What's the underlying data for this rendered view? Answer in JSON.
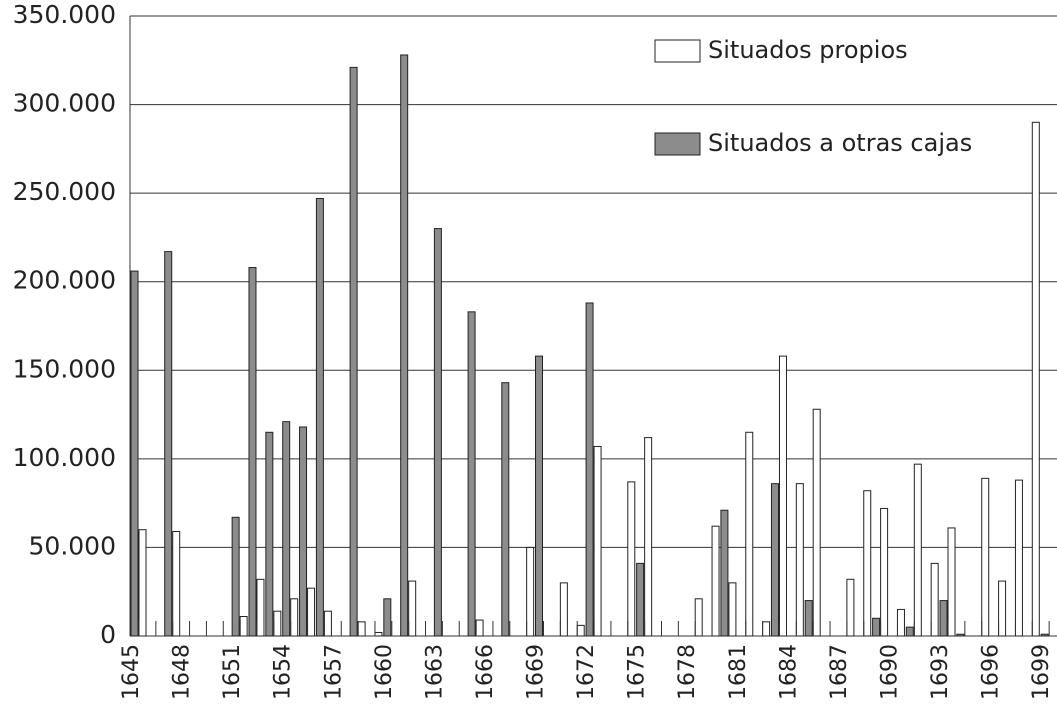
{
  "chart_data": {
    "type": "bar",
    "categories": [
      "1645",
      null,
      null,
      "1648",
      null,
      null,
      "1651",
      null,
      null,
      "1654",
      null,
      null,
      "1657",
      null,
      null,
      "1660",
      null,
      null,
      "1663",
      null,
      null,
      "1666",
      null,
      null,
      "1669",
      null,
      null,
      "1672",
      null,
      null,
      "1675",
      null,
      null,
      "1678",
      null,
      null,
      "1681",
      null,
      null,
      "1684",
      null,
      null,
      "1687",
      null,
      null,
      "1690",
      null,
      null,
      "1693",
      null,
      null,
      "1696",
      null,
      null,
      "1699"
    ],
    "series": [
      {
        "name": "Situados propios",
        "color": "#ffffff",
        "values": [
          60000,
          0,
          59000,
          0,
          0,
          0,
          11000,
          32000,
          14000,
          21000,
          27000,
          14000,
          0,
          8000,
          2000,
          0,
          31000,
          0,
          0,
          0,
          9000,
          0,
          0,
          50000,
          0,
          30000,
          6000,
          107000,
          0,
          87000,
          112000,
          0,
          0,
          21000,
          62000,
          30000,
          115000,
          8000,
          158000,
          86000,
          128000,
          0,
          32000,
          82000,
          72000,
          15000,
          97000,
          41000,
          61000,
          0,
          89000,
          31000,
          88000,
          290000,
          0
        ]
      },
      {
        "name": "Situados a otras cajas",
        "color": "#8c8c8c",
        "values": [
          206000,
          0,
          217000,
          0,
          0,
          0,
          67000,
          208000,
          115000,
          121000,
          118000,
          247000,
          0,
          321000,
          0,
          21000,
          328000,
          0,
          230000,
          0,
          183000,
          0,
          143000,
          0,
          158000,
          0,
          0,
          188000,
          0,
          0,
          41000,
          0,
          0,
          0,
          0,
          71000,
          0,
          0,
          86000,
          0,
          20000,
          0,
          0,
          0,
          10000,
          0,
          5000,
          0,
          20000,
          1000,
          0,
          0,
          0,
          0,
          1000
        ]
      }
    ],
    "ylim": [
      0,
      350000
    ],
    "yticks": [
      0,
      {
        "value": 50000,
        "label": "50.000"
      },
      {
        "value": 100000,
        "label": "100.000"
      },
      {
        "value": 150000,
        "label": "150.000"
      },
      {
        "value": 200000,
        "label": "200.000"
      },
      {
        "value": 250000,
        "label": "250.000"
      },
      {
        "value": 300000,
        "label": "300.000"
      },
      {
        "value": 350000,
        "label": "350.000"
      }
    ],
    "grid": true,
    "legend": "upper right"
  }
}
